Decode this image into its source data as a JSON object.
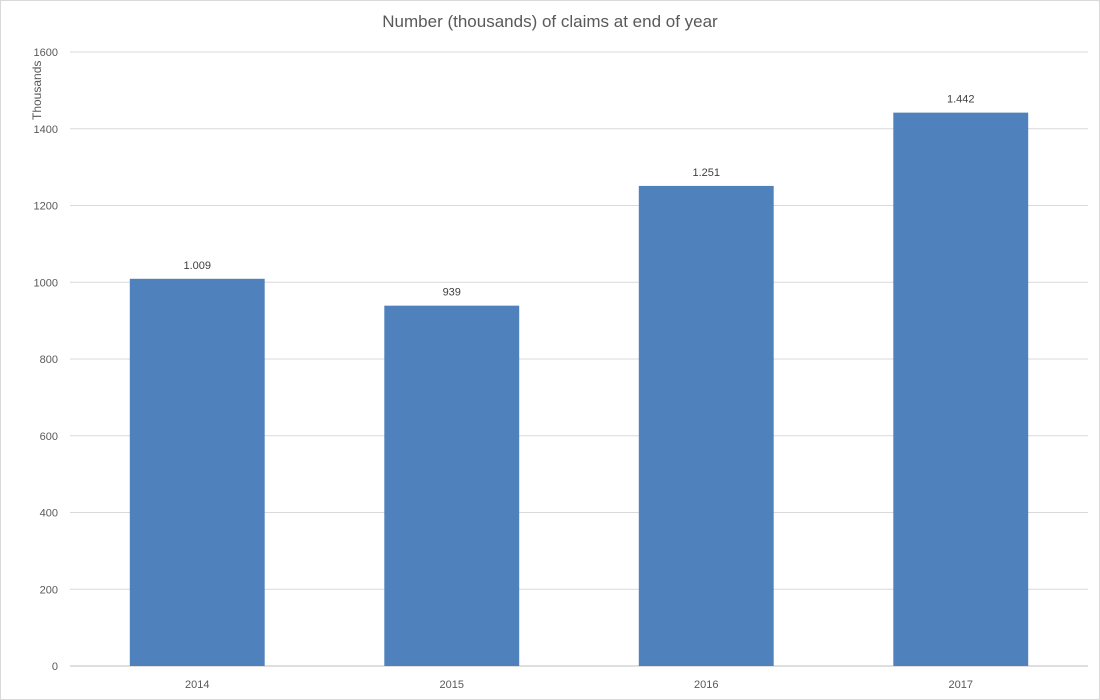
{
  "chart_data": {
    "type": "bar",
    "title": "Number (thousands) of claims at end of year",
    "xlabel": "",
    "ylabel": "Thousands",
    "categories": [
      "2014",
      "2015",
      "2016",
      "2017"
    ],
    "values": [
      1009,
      939,
      1251,
      1442
    ],
    "data_labels": [
      "1.009",
      "939",
      "1.251",
      "1.442"
    ],
    "ylim": [
      0,
      1600
    ],
    "yticks": [
      0,
      200,
      400,
      600,
      800,
      1000,
      1200,
      1400,
      1600
    ],
    "ytick_labels": [
      "0",
      "200",
      "400",
      "600",
      "800",
      "1000",
      "1200",
      "1400",
      "1600"
    ],
    "grid": true,
    "legend": "none",
    "bar_color": "#4f81bd",
    "grid_color": "#d9d9d9"
  }
}
